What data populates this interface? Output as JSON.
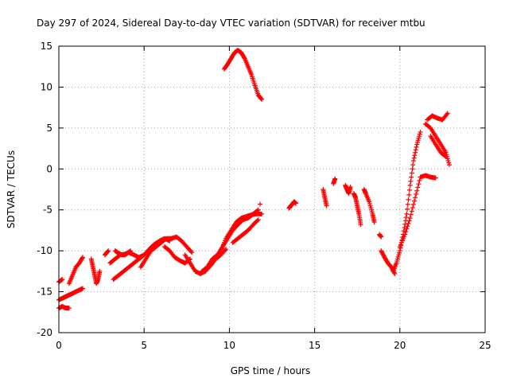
{
  "chart_data": {
    "type": "scatter",
    "title": "Day 297 of 2024, Sidereal Day-to-day VTEC variation (SDTVAR) for receiver mtbu",
    "xlabel": "GPS time / hours",
    "ylabel": "SDTVAR / TECUs",
    "xlim": [
      0,
      25
    ],
    "ylim": [
      -20,
      15
    ],
    "xticks": [
      "0",
      "5",
      "10",
      "15",
      "20",
      "25"
    ],
    "yticks": [
      "-20",
      "-15",
      "-10",
      "-5",
      "0",
      "5",
      "10",
      "15"
    ],
    "grid": true,
    "marker": "+",
    "color": "#ff0000",
    "segments": [
      {
        "name": "arc-1",
        "x": [
          0.0,
          0.2,
          0.4,
          0.6,
          0.8,
          1.0,
          1.2,
          1.4
        ],
        "y": [
          -16.0,
          -15.8,
          -15.6,
          -15.4,
          -15.2,
          -15.0,
          -14.8,
          -14.6
        ]
      },
      {
        "name": "arc-2",
        "x": [
          0.0,
          0.2,
          0.4,
          0.6
        ],
        "y": [
          -17.0,
          -16.8,
          -17.0,
          -17.0
        ]
      },
      {
        "name": "arc-3",
        "x": [
          0.0,
          0.2
        ],
        "y": [
          -13.8,
          -13.5
        ]
      },
      {
        "name": "arc-4",
        "x": [
          0.6,
          0.8,
          1.0,
          1.2,
          1.4
        ],
        "y": [
          -14.0,
          -13.0,
          -12.0,
          -11.5,
          -10.8
        ]
      },
      {
        "name": "arc-5",
        "x": [
          1.9,
          2.0,
          2.1,
          2.2,
          2.3,
          2.4
        ],
        "y": [
          -11.0,
          -12.0,
          -13.0,
          -14.0,
          -13.5,
          -12.5
        ]
      },
      {
        "name": "arc-6",
        "x": [
          2.7,
          2.9
        ],
        "y": [
          -10.5,
          -10.0
        ]
      },
      {
        "name": "arc-7",
        "x": [
          3.0,
          3.3,
          3.6,
          3.9,
          4.2
        ],
        "y": [
          -11.5,
          -11.0,
          -10.5,
          -10.5,
          -10.0
        ]
      },
      {
        "name": "arc-8",
        "x": [
          3.2,
          3.5,
          3.8,
          4.1,
          4.4,
          4.7,
          5.0
        ],
        "y": [
          -13.5,
          -13.0,
          -12.5,
          -12.0,
          -11.5,
          -11.0,
          -10.5
        ]
      },
      {
        "name": "arc-9",
        "x": [
          3.3,
          3.5,
          3.7,
          3.9,
          4.1,
          4.4,
          4.7,
          5.0,
          5.3,
          5.6,
          5.9,
          6.2,
          6.5
        ],
        "y": [
          -10.0,
          -10.3,
          -10.5,
          -10.4,
          -10.2,
          -10.5,
          -10.8,
          -10.5,
          -9.8,
          -9.2,
          -8.8,
          -8.5,
          -8.8
        ]
      },
      {
        "name": "arc-10",
        "x": [
          4.8,
          5.1,
          5.4,
          5.7,
          6.0,
          6.3,
          6.6,
          6.9,
          7.2,
          7.5,
          7.8
        ],
        "y": [
          -12.0,
          -11.0,
          -10.0,
          -9.5,
          -9.0,
          -8.5,
          -8.5,
          -8.3,
          -8.8,
          -9.5,
          -10.2
        ]
      },
      {
        "name": "arc-11",
        "x": [
          6.2,
          6.5,
          6.8,
          7.1,
          7.4,
          7.7
        ],
        "y": [
          -9.5,
          -10.0,
          -10.8,
          -11.2,
          -11.5,
          -11.0
        ]
      },
      {
        "name": "arc-12",
        "x": [
          7.4,
          7.7,
          8.0,
          8.3,
          8.6,
          8.9,
          9.2,
          9.5,
          9.8
        ],
        "y": [
          -10.5,
          -11.5,
          -12.5,
          -12.8,
          -12.5,
          -11.8,
          -11.0,
          -10.5,
          -9.8
        ]
      },
      {
        "name": "arc-13",
        "x": [
          8.4,
          8.7,
          9.0,
          9.3,
          9.6,
          9.9,
          10.2,
          10.5,
          10.8,
          11.1,
          11.4,
          11.7
        ],
        "y": [
          -12.5,
          -12.0,
          -11.0,
          -10.5,
          -9.5,
          -8.5,
          -7.5,
          -6.8,
          -6.2,
          -6.0,
          -5.5,
          -5.0
        ]
      },
      {
        "name": "arc-14",
        "x": [
          9.5,
          9.8,
          10.1,
          10.4,
          10.7,
          11.0,
          11.3,
          11.6,
          11.9
        ],
        "y": [
          -10.0,
          -8.5,
          -7.5,
          -6.5,
          -6.0,
          -5.8,
          -5.6,
          -5.5,
          -5.5
        ]
      },
      {
        "name": "arc-15",
        "x": [
          10.2,
          10.5,
          10.8,
          11.1,
          11.4,
          11.7
        ],
        "y": [
          -9.0,
          -8.5,
          -8.0,
          -7.5,
          -6.8,
          -6.2
        ]
      },
      {
        "name": "arc-16",
        "x": [
          11.8
        ],
        "y": [
          -4.3
        ]
      },
      {
        "name": "arc-17",
        "x": [
          9.7,
          9.9,
          10.1,
          10.3,
          10.5,
          10.7,
          10.9,
          11.1,
          11.3,
          11.5,
          11.7,
          11.9
        ],
        "y": [
          12.2,
          12.8,
          13.5,
          14.2,
          14.5,
          14.2,
          13.5,
          12.5,
          11.5,
          10.2,
          9.0,
          8.5
        ]
      },
      {
        "name": "arc-18",
        "x": [
          13.5,
          13.6,
          13.7,
          13.8,
          13.9
        ],
        "y": [
          -4.8,
          -4.5,
          -4.3,
          -4.0,
          -4.2
        ]
      },
      {
        "name": "arc-19",
        "x": [
          15.5,
          15.6,
          15.7
        ],
        "y": [
          -2.5,
          -3.5,
          -4.5
        ]
      },
      {
        "name": "arc-20",
        "x": [
          16.1,
          16.2
        ],
        "y": [
          -1.8,
          -1.2
        ]
      },
      {
        "name": "arc-21",
        "x": [
          16.8,
          16.9,
          17.0,
          17.1
        ],
        "y": [
          -2.0,
          -2.5,
          -3.0,
          -2.2
        ]
      },
      {
        "name": "arc-22",
        "x": [
          17.3,
          17.4,
          17.5,
          17.6,
          17.7
        ],
        "y": [
          -3.0,
          -3.5,
          -4.5,
          -5.5,
          -6.8
        ]
      },
      {
        "name": "arc-23",
        "x": [
          17.9,
          18.0,
          18.2,
          18.4,
          18.5
        ],
        "y": [
          -2.5,
          -3.0,
          -4.0,
          -5.5,
          -6.5
        ]
      },
      {
        "name": "arc-24",
        "x": [
          18.8,
          18.9
        ],
        "y": [
          -8.0,
          -8.3
        ]
      },
      {
        "name": "arc-25",
        "x": [
          18.9,
          19.1,
          19.3,
          19.5,
          19.7
        ],
        "y": [
          -10.0,
          -10.8,
          -11.5,
          -12.0,
          -12.8
        ]
      },
      {
        "name": "arc-26",
        "x": [
          19.6,
          19.8,
          20.0,
          20.2,
          20.4,
          20.6,
          20.8,
          21.0,
          21.2
        ],
        "y": [
          -12.5,
          -11.5,
          -10.0,
          -8.0,
          -5.5,
          -2.0,
          1.0,
          3.0,
          4.5
        ]
      },
      {
        "name": "arc-27",
        "x": [
          20.0,
          20.3,
          20.6,
          20.9,
          21.2,
          21.5,
          21.8,
          22.1
        ],
        "y": [
          -9.5,
          -8.0,
          -6.0,
          -3.5,
          -1.0,
          -0.8,
          -1.0,
          -1.1
        ]
      },
      {
        "name": "arc-28",
        "x": [
          21.6,
          21.9,
          22.2,
          22.5,
          22.8
        ],
        "y": [
          6.0,
          6.5,
          6.2,
          6.0,
          6.8
        ]
      },
      {
        "name": "arc-29",
        "x": [
          21.5,
          21.8,
          22.1,
          22.4,
          22.7,
          22.9
        ],
        "y": [
          5.5,
          5.0,
          4.0,
          3.0,
          2.0,
          0.5
        ]
      },
      {
        "name": "arc-30",
        "x": [
          21.8,
          22.1,
          22.4,
          22.7
        ],
        "y": [
          4.0,
          3.0,
          2.0,
          1.5
        ]
      }
    ]
  }
}
